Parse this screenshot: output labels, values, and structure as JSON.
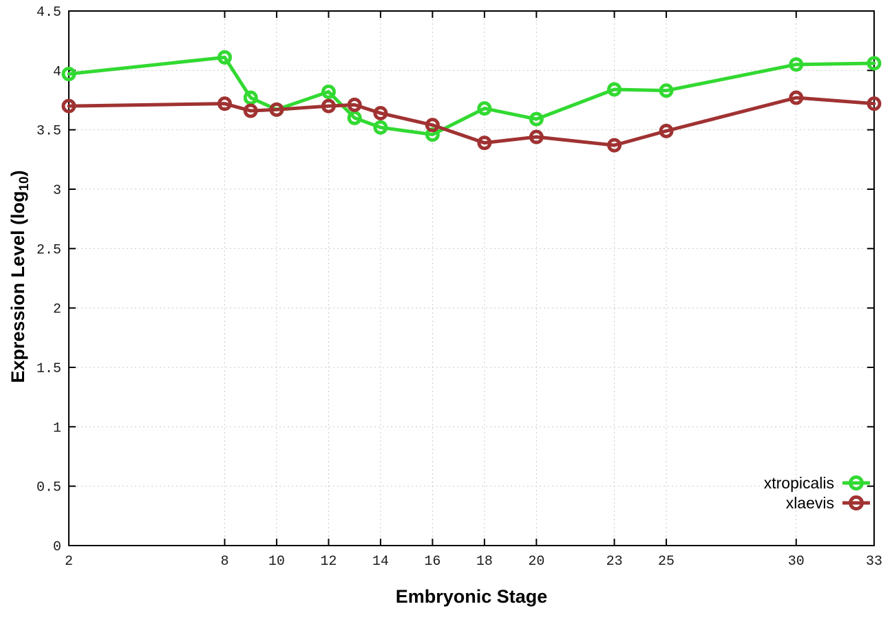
{
  "figure": {
    "xlabel": "Embryonic Stage",
    "ylabel": {
      "pre": "Expression Level (log",
      "sub": "10",
      "post": ")"
    }
  },
  "chart_data": {
    "type": "line",
    "title": "",
    "xlabel": "Embryonic Stage",
    "ylabel": "Expression Level (log10)",
    "xlim": [
      2,
      33
    ],
    "ylim": [
      0,
      4.5
    ],
    "grid": true,
    "grid_style": "dotted",
    "legend_position": "inside-bottom-right",
    "x": [
      2,
      8,
      9,
      10,
      12,
      13,
      14,
      16,
      18,
      20,
      23,
      25,
      30,
      33
    ],
    "xticks": [
      2,
      8,
      10,
      12,
      14,
      16,
      18,
      20,
      23,
      25,
      30,
      33
    ],
    "yticks": [
      0,
      0.5,
      1,
      1.5,
      2,
      2.5,
      3,
      3.5,
      4,
      4.5
    ],
    "ytick_labels": [
      "0",
      "0.5",
      "1",
      "1.5",
      "2",
      "2.5",
      "3",
      "3.5",
      "4",
      "4.5"
    ],
    "marker": "open-circle",
    "series": [
      {
        "name": "xtropicalis",
        "color": "#32d932",
        "values": [
          3.97,
          4.11,
          3.77,
          3.67,
          3.82,
          3.6,
          3.52,
          3.46,
          3.68,
          3.59,
          3.84,
          3.83,
          4.05,
          4.06
        ]
      },
      {
        "name": "xlaevis",
        "color": "#a03232",
        "values": [
          3.7,
          3.72,
          3.66,
          3.67,
          3.7,
          3.71,
          3.64,
          3.54,
          3.39,
          3.44,
          3.37,
          3.49,
          3.77,
          3.72
        ]
      }
    ],
    "colors": {
      "background": "#ffffff",
      "border": "#000000",
      "grid": "#c9c9c9",
      "tick_label": "#1c1c1c"
    }
  }
}
